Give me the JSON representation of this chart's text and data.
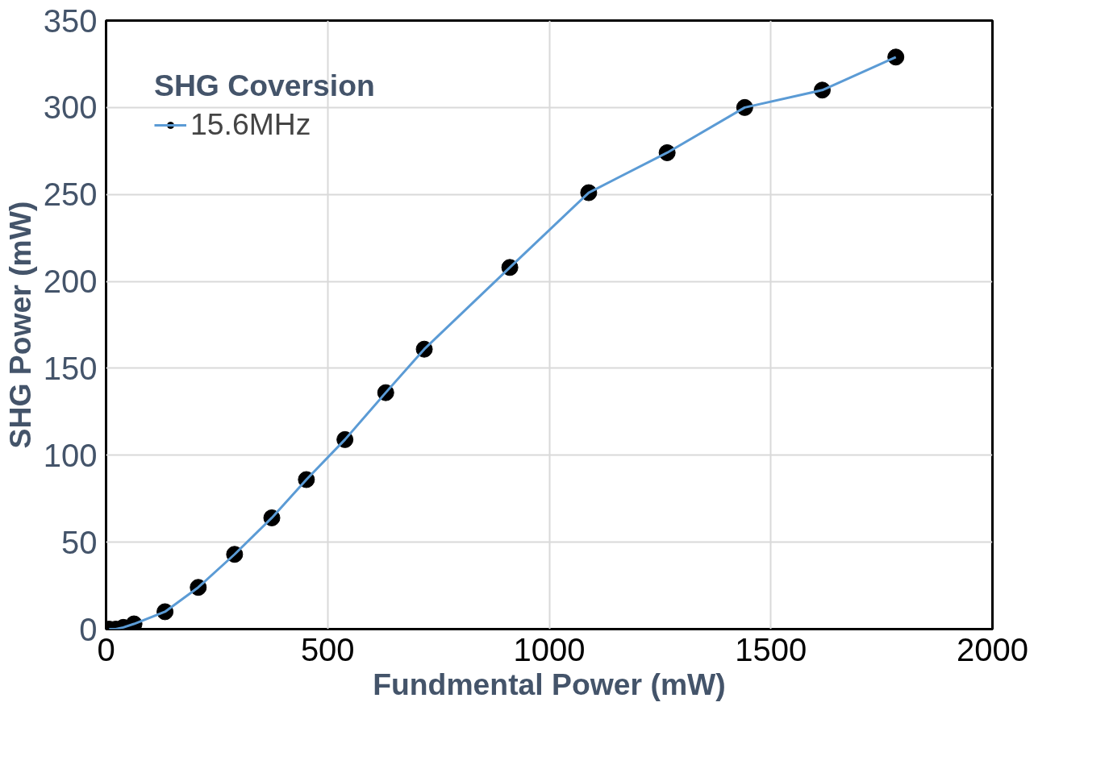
{
  "chart_data": {
    "type": "line",
    "xlabel": "Fundmental Power (mW)",
    "ylabel": "SHG Power (mW)",
    "legend_title": "SHG Coversion",
    "x": [
      7,
      22,
      39,
      63,
      133,
      208,
      290,
      374,
      452,
      539,
      631,
      718,
      911,
      1089,
      1266,
      1441,
      1616,
      1782
    ],
    "series": [
      {
        "name": "15.6MHz",
        "color": "#5b9bd5",
        "values": [
          0,
          0,
          1,
          3,
          10,
          24,
          43,
          64,
          86,
          109,
          136,
          161,
          208,
          251,
          274,
          300,
          310,
          329
        ]
      }
    ],
    "xlim": [
      0,
      2000
    ],
    "xticks": [
      0,
      500,
      1000,
      1500,
      2000
    ],
    "ylim": [
      0,
      350
    ],
    "yticks": [
      0,
      50,
      100,
      150,
      200,
      250,
      300,
      350
    ],
    "grid": true,
    "legend": "top left",
    "marker": "circle",
    "line_style": "solid"
  }
}
